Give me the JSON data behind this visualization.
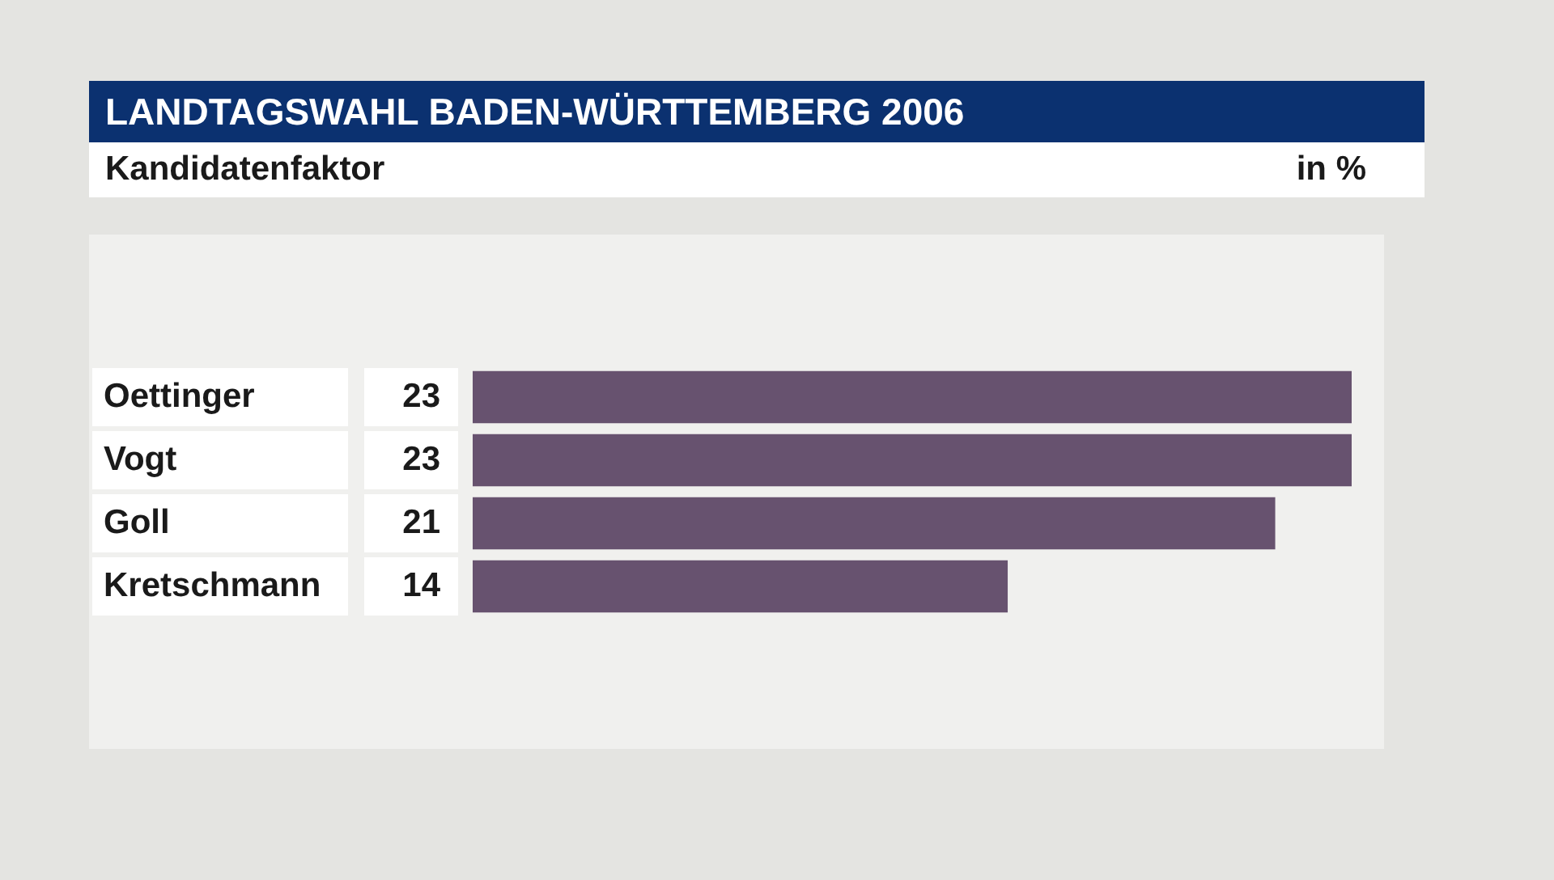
{
  "chart_data": {
    "type": "bar",
    "orientation": "horizontal",
    "title": "LANDTAGSWAHL BADEN-WÜRTTEMBERG 2006",
    "subtitle": "Kandidatenfaktor",
    "annotations": [
      "in %"
    ],
    "categories": [
      "Oettinger",
      "Vogt",
      "Goll",
      "Kretschmann"
    ],
    "values": [
      23,
      23,
      21,
      14
    ],
    "color": "#67526f",
    "data_labels": true
  }
}
